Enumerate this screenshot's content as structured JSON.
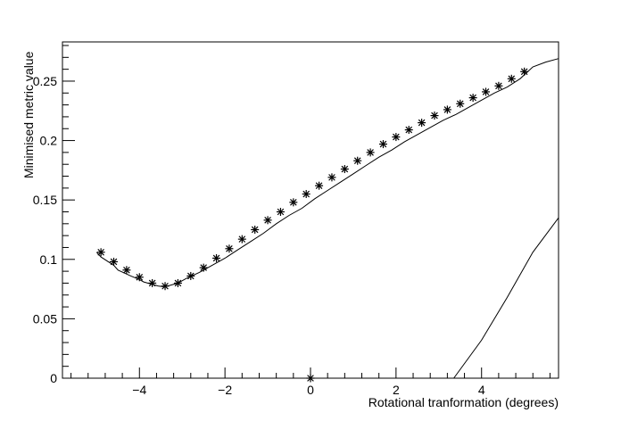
{
  "chart_data": {
    "type": "line",
    "title": "",
    "xlabel": "Rotational tranformation (degrees)",
    "ylabel": "Minimised metric value",
    "xlim": [
      -5.8,
      5.8
    ],
    "ylim": [
      0,
      0.283
    ],
    "x_ticks": [
      -4,
      -2,
      0,
      2,
      4
    ],
    "x_tick_labels": [
      "−4",
      "−2",
      "0",
      "2",
      "4"
    ],
    "y_ticks": [
      0,
      0.05,
      0.1,
      0.15,
      0.2,
      0.25
    ],
    "y_tick_labels": [
      "0",
      "0.05",
      "0.1",
      "0.15",
      "0.2",
      "0.25"
    ],
    "grid": false,
    "legend": "none",
    "series": [
      {
        "x": [
          -5.0,
          -4.9,
          -4.6,
          -4.5,
          -4.2,
          -4.0,
          -3.9,
          -3.6,
          -3.55,
          -3.45,
          -3.3,
          -3.1,
          -2.9,
          -2.6,
          -2.3,
          -2.0,
          -1.7,
          -1.4,
          -1.1,
          -0.8,
          -0.5,
          -0.2,
          0.1,
          0.4,
          0.7,
          1.0,
          1.3,
          1.6,
          1.9,
          2.2,
          2.5,
          2.8,
          3.1,
          3.4,
          3.7,
          4.0,
          4.3,
          4.6,
          4.9,
          5.2,
          5.5,
          5.8
        ],
        "y": [
          0.106,
          0.102,
          0.095,
          0.091,
          0.086,
          0.083,
          0.081,
          0.078,
          0.0775,
          0.077,
          0.078,
          0.08,
          0.084,
          0.089,
          0.095,
          0.101,
          0.108,
          0.115,
          0.122,
          0.13,
          0.137,
          0.143,
          0.151,
          0.158,
          0.165,
          0.172,
          0.179,
          0.186,
          0.192,
          0.199,
          0.205,
          0.211,
          0.217,
          0.222,
          0.228,
          0.234,
          0.24,
          0.245,
          0.252,
          0.262,
          0.266,
          0.269
        ]
      },
      {
        "x": [
          3.35,
          4.0,
          4.6,
          5.2,
          5.8
        ],
        "y": [
          0.0,
          0.032,
          0.068,
          0.106,
          0.135
        ]
      }
    ],
    "markers": {
      "x": [
        -4.9,
        -4.6,
        -4.3,
        -4.0,
        -3.7,
        -3.4,
        -3.1,
        -2.8,
        -2.5,
        -2.2,
        -1.9,
        -1.6,
        -1.3,
        -1.0,
        -0.7,
        -0.4,
        -0.1,
        0.2,
        0.5,
        0.8,
        1.1,
        1.4,
        1.7,
        2.0,
        2.3,
        2.6,
        2.9,
        3.2,
        3.5,
        3.8,
        4.1,
        4.4,
        4.7,
        5.0
      ],
      "y": [
        0.106,
        0.098,
        0.091,
        0.085,
        0.08,
        0.0775,
        0.08,
        0.086,
        0.093,
        0.101,
        0.109,
        0.117,
        0.125,
        0.133,
        0.14,
        0.148,
        0.155,
        0.162,
        0.169,
        0.176,
        0.183,
        0.19,
        0.197,
        0.203,
        0.209,
        0.215,
        0.221,
        0.226,
        0.231,
        0.236,
        0.241,
        0.246,
        0.252,
        0.258
      ]
    },
    "extra_marker": {
      "x": 0,
      "y": 0
    }
  }
}
